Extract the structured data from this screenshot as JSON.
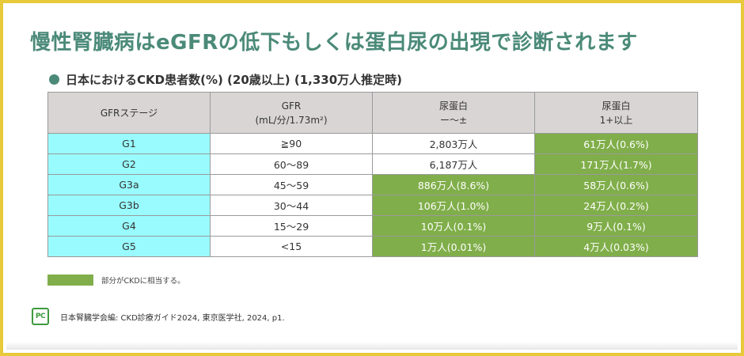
{
  "title": "慢性腎臓病はeGFRの低下もしくは蛋白尿の出現で診断されます",
  "subtitle": "日本におけるCKD患者数(%) (20歳以上) (1,330万人推定時)",
  "table": {
    "headers": [
      {
        "line1": "GFRステージ",
        "line2": ""
      },
      {
        "line1": "GFR",
        "line2": "(mL/分/1.73m²)"
      },
      {
        "line1": "尿蛋白",
        "line2": "ー〜±"
      },
      {
        "line1": "尿蛋白",
        "line2": "1+以上"
      }
    ],
    "rows": [
      {
        "stage": "G1",
        "gfr": "≧90",
        "prot_neg": "2,803万人",
        "prot_pos": "61万人(0.6%)"
      },
      {
        "stage": "G2",
        "gfr": "60〜89",
        "prot_neg": "6,187万人",
        "prot_pos": "171万人(1.7%)"
      },
      {
        "stage": "G3a",
        "gfr": "45〜59",
        "prot_neg": "886万人(8.6%)",
        "prot_pos": "58万人(0.6%)"
      },
      {
        "stage": "G3b",
        "gfr": "30〜44",
        "prot_neg": "106万人(1.0%)",
        "prot_pos": "24万人(0.2%)"
      },
      {
        "stage": "G4",
        "gfr": "15〜29",
        "prot_neg": "10万人(0.1%)",
        "prot_pos": "9万人(0.1%)"
      },
      {
        "stage": "G5",
        "gfr": "<15",
        "prot_neg": "1万人(0.01%)",
        "prot_pos": "4万人(0.03%)"
      }
    ],
    "ckd_cells": [
      [
        false,
        true
      ],
      [
        false,
        true
      ],
      [
        true,
        true
      ],
      [
        true,
        true
      ],
      [
        true,
        true
      ],
      [
        true,
        true
      ]
    ]
  },
  "legend": {
    "text": "部分がCKDに相当する。"
  },
  "source": {
    "logo_text": "PC",
    "text": "日本腎臓学会編: CKD診療ガイド2024, 東京医学社, 2024, p1."
  },
  "colors": {
    "title": "#4b8a78",
    "ckd_green": "#80ae4a",
    "stage_cyan": "#99fbfd",
    "header_gray": "#d8d5d4",
    "frame_yellow": "#e8c93a"
  }
}
